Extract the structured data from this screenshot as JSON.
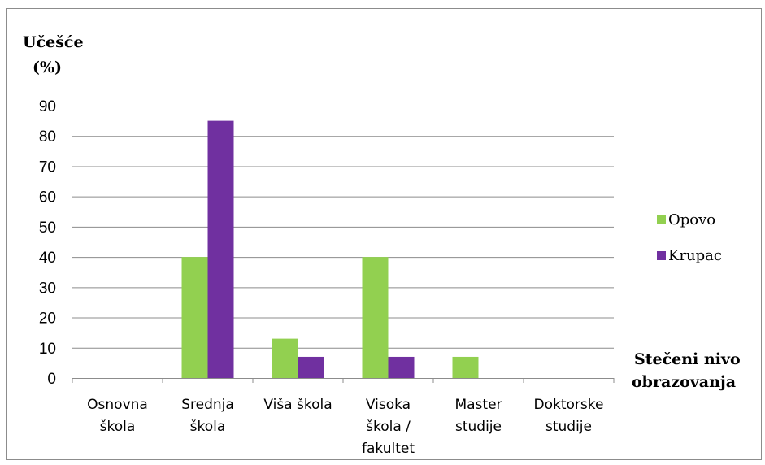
{
  "chart_data": {
    "type": "bar",
    "ylabel_lines": [
      "Učešće",
      "(%)"
    ],
    "xlabel_lines": [
      "Stečeni nivo",
      "obrazovanja"
    ],
    "ylim": [
      0,
      90
    ],
    "yticks": [
      0,
      10,
      20,
      30,
      40,
      50,
      60,
      70,
      80,
      90
    ],
    "grid": true,
    "legend_position": "right",
    "categories": [
      [
        "Osnovna",
        "škola"
      ],
      [
        "Srednja",
        "škola"
      ],
      [
        "Viša škola"
      ],
      [
        "Visoka",
        "škola /",
        "fakultet"
      ],
      [
        "Master",
        "studije"
      ],
      [
        "Doktorske",
        "studije"
      ]
    ],
    "series": [
      {
        "name": "Opovo",
        "color": "#92d050",
        "values": [
          0,
          40,
          13,
          40,
          7,
          0
        ]
      },
      {
        "name": "Krupac",
        "color": "#7030a0",
        "values": [
          0,
          85,
          7,
          7,
          0,
          0
        ]
      }
    ]
  }
}
